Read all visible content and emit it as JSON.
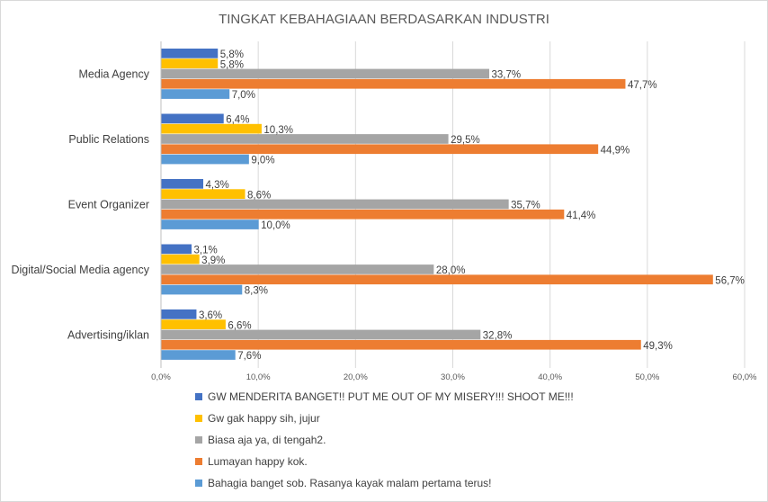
{
  "chart_data": {
    "type": "bar",
    "orientation": "horizontal",
    "title": "TINGKAT KEBAHAGIAAN BERDASARKAN INDUSTRI",
    "categories": [
      "Media Agency",
      "Public Relations",
      "Event Organizer",
      "Digital/Social Media agency",
      "Advertising/iklan"
    ],
    "series": [
      {
        "name": "GW MENDERITA BANGET!! PUT ME OUT OF MY MISERY!!! SHOOT ME!!!",
        "color": "#4472c4",
        "values": [
          5.8,
          6.4,
          4.3,
          3.1,
          3.6
        ],
        "labels": [
          "5,8%",
          "6,4%",
          "4,3%",
          "3,1%",
          "3,6%"
        ]
      },
      {
        "name": "Gw gak happy sih, jujur",
        "color": "#ffc000",
        "values": [
          5.8,
          10.3,
          8.6,
          3.9,
          6.6
        ],
        "labels": [
          "5,8%",
          "10,3%",
          "8,6%",
          "3,9%",
          "6,6%"
        ]
      },
      {
        "name": "Biasa aja ya, di tengah2.",
        "color": "#a5a5a5",
        "values": [
          33.7,
          29.5,
          35.7,
          28.0,
          32.8
        ],
        "labels": [
          "33,7%",
          "29,5%",
          "35,7%",
          "28,0%",
          "32,8%"
        ]
      },
      {
        "name": "Lumayan happy kok.",
        "color": "#ed7d31",
        "values": [
          47.7,
          44.9,
          41.4,
          56.7,
          49.3
        ],
        "labels": [
          "47,7%",
          "44,9%",
          "41,4%",
          "56,7%",
          "49,3%"
        ]
      },
      {
        "name": "Bahagia banget sob. Rasanya kayak malam pertama terus!",
        "color": "#5b9bd5",
        "values": [
          7.0,
          9.0,
          10.0,
          8.3,
          7.6
        ],
        "labels": [
          "7,0%",
          "9,0%",
          "10,0%",
          "8,3%",
          "7,6%"
        ]
      }
    ],
    "xlim": [
      0,
      60
    ],
    "x_ticks": [
      0,
      10,
      20,
      30,
      40,
      50,
      60
    ],
    "x_tick_labels": [
      "0,0%",
      "10,0%",
      "20,0%",
      "30,0%",
      "40,0%",
      "50,0%",
      "60,0%"
    ],
    "xlabel": "",
    "ylabel": "",
    "grid": true,
    "legend_position": "bottom"
  }
}
